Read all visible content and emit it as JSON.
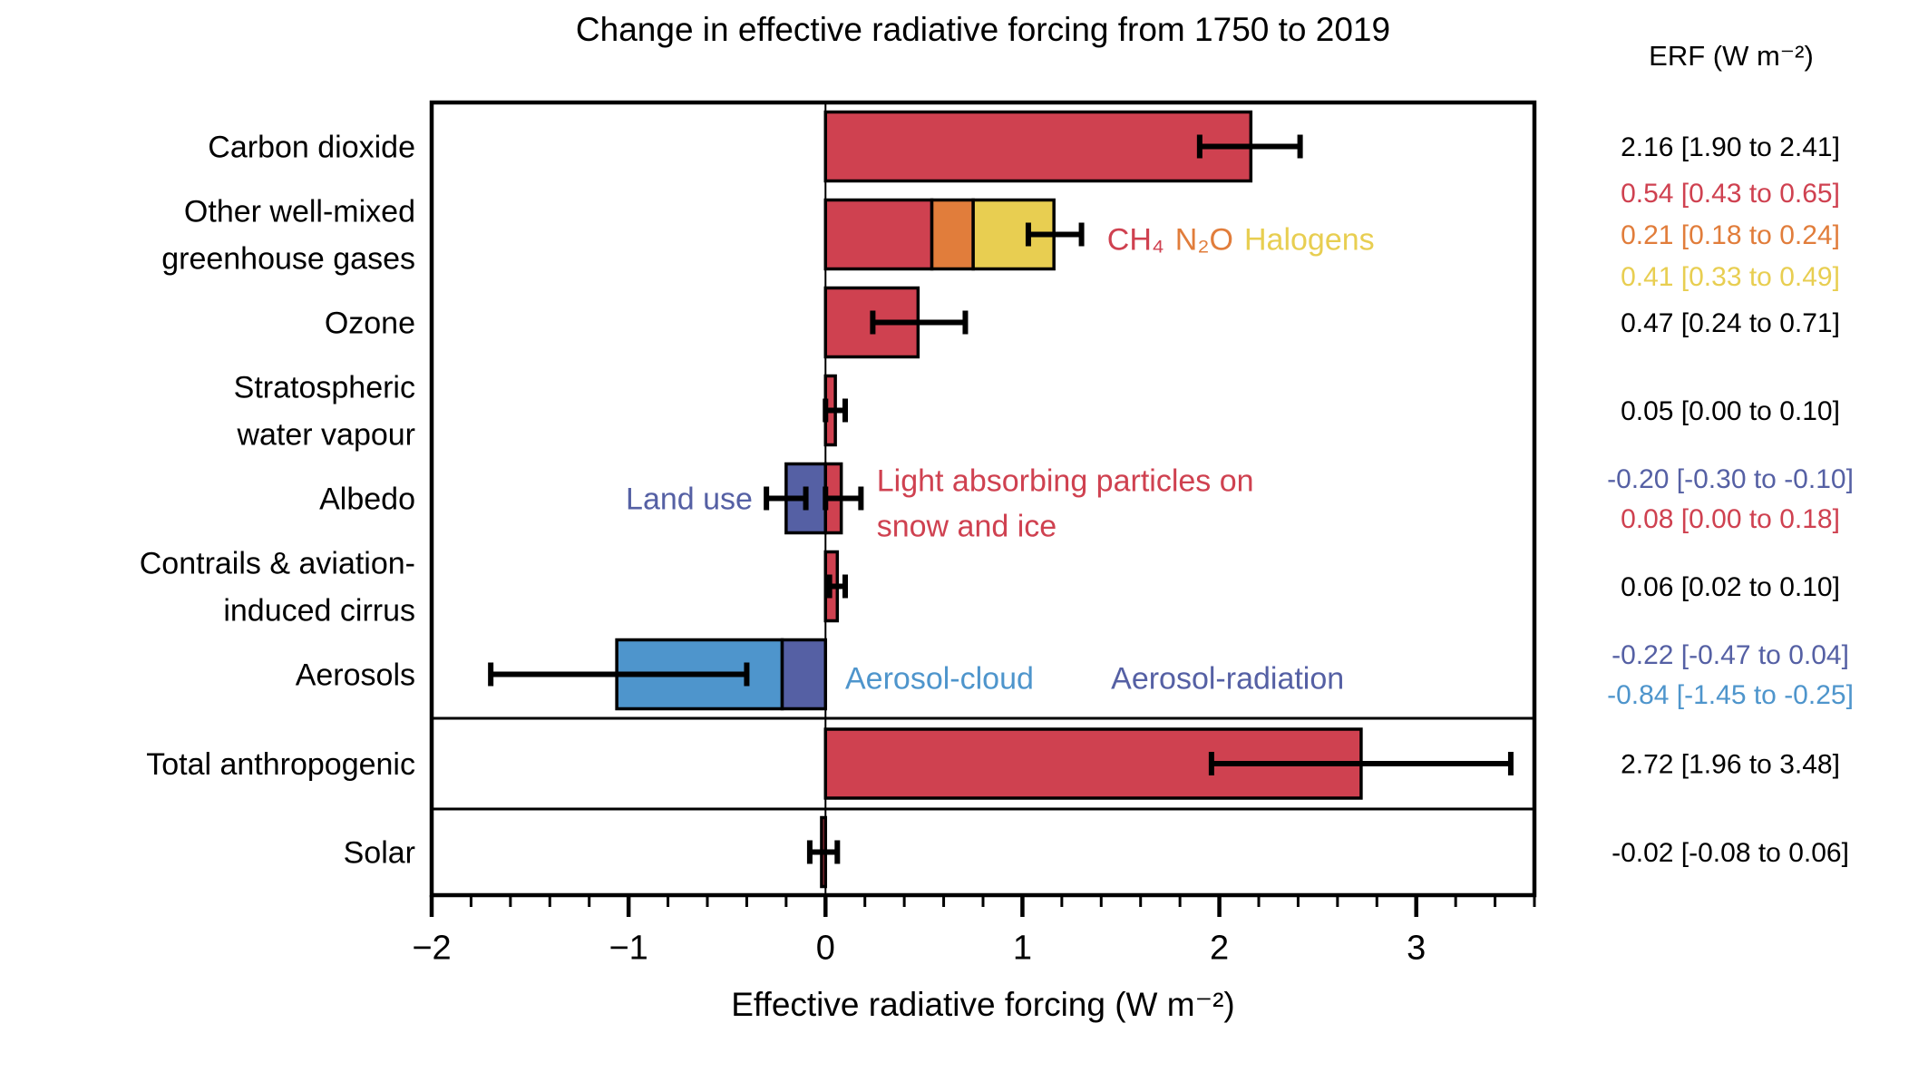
{
  "title": "Change in effective radiative forcing from 1750 to 2019",
  "erf_column": {
    "header": "ERF (W m⁻²)"
  },
  "colors": {
    "black": "#000000",
    "red": "#cf4150",
    "orange": "#e17d3b",
    "yellow": "#e8ce51",
    "dark_blue": "#5560a4",
    "light_blue": "#4e95cc"
  },
  "chart_data": {
    "type": "bar",
    "orientation": "horizontal",
    "title": "Change in effective radiative forcing from 1750 to 2019",
    "xlabel": "Effective radiative forcing (W m⁻²)",
    "ylabel": "",
    "xlim": [
      -2,
      3.6
    ],
    "xticks": [
      -2,
      -1,
      0,
      1,
      2,
      3
    ],
    "minor_tick_step": 0.2,
    "grid": false,
    "legend_position": "none",
    "rows": [
      {
        "section": "main",
        "label_lines": [
          "Carbon dioxide"
        ],
        "segments": [
          {
            "name": "Carbon dioxide",
            "start": 0,
            "end": 2.16,
            "color": "red"
          }
        ],
        "error_bars": [
          {
            "low": 1.9,
            "high": 2.41
          }
        ],
        "erf_values": [
          {
            "text": "2.16 [1.90 to 2.41]",
            "color": "black"
          }
        ]
      },
      {
        "section": "main",
        "label_lines": [
          "Other well-mixed",
          "greenhouse gases"
        ],
        "segments": [
          {
            "name": "CH₄",
            "start": 0,
            "end": 0.54,
            "color": "red"
          },
          {
            "name": "N₂O",
            "start": 0.54,
            "end": 0.75,
            "color": "orange"
          },
          {
            "name": "Halogens",
            "start": 0.75,
            "end": 1.16,
            "color": "yellow"
          }
        ],
        "error_bars": [
          {
            "low": 1.03,
            "high": 1.3
          }
        ],
        "erf_values": [
          {
            "text": "0.54 [0.43 to 0.65]",
            "color": "red"
          },
          {
            "text": "0.21 [0.18 to 0.24]",
            "color": "orange"
          },
          {
            "text": "0.41 [0.33 to 0.49]",
            "color": "yellow"
          }
        ],
        "annotations": [
          {
            "x": 1.43,
            "anchor": "start",
            "dy": 5,
            "parts": [
              {
                "text": "CH₄",
                "color": "red"
              },
              {
                "text": "N₂O",
                "color": "orange"
              },
              {
                "text": "Halogens",
                "color": "yellow"
              }
            ]
          }
        ]
      },
      {
        "section": "main",
        "label_lines": [
          "Ozone"
        ],
        "segments": [
          {
            "name": "Ozone",
            "start": 0,
            "end": 0.47,
            "color": "red"
          }
        ],
        "error_bars": [
          {
            "low": 0.24,
            "high": 0.71
          }
        ],
        "erf_values": [
          {
            "text": "0.47 [0.24 to 0.71]",
            "color": "black"
          }
        ]
      },
      {
        "section": "main",
        "label_lines": [
          "Stratospheric",
          "water vapour"
        ],
        "segments": [
          {
            "name": "Stratospheric water vapour",
            "start": 0,
            "end": 0.05,
            "color": "red"
          }
        ],
        "error_bars": [
          {
            "low": 0.0,
            "high": 0.1
          }
        ],
        "erf_values": [
          {
            "text": "0.05 [0.00 to 0.10]",
            "color": "black"
          }
        ]
      },
      {
        "section": "main",
        "label_lines": [
          "Albedo"
        ],
        "segments": [
          {
            "name": "Land use",
            "start": -0.2,
            "end": 0,
            "color": "dark_blue"
          },
          {
            "name": "Light absorbing particles on snow and ice",
            "start": 0,
            "end": 0.08,
            "color": "red"
          }
        ],
        "error_bars": [
          {
            "low": -0.3,
            "high": -0.1
          },
          {
            "low": 0.0,
            "high": 0.18
          }
        ],
        "erf_values": [
          {
            "text": "-0.20 [-0.30 to -0.10]",
            "color": "dark_blue"
          },
          {
            "text": "0.08 [0.00 to 0.18]",
            "color": "red"
          }
        ],
        "annotations": [
          {
            "x": -0.37,
            "anchor": "end",
            "dy": 0,
            "parts": [
              {
                "text": "Land use",
                "color": "dark_blue"
              }
            ]
          },
          {
            "x": 0.26,
            "anchor": "start",
            "dy": -20,
            "parts": [
              {
                "text": "Light absorbing particles on",
                "color": "red"
              }
            ]
          },
          {
            "x": 0.26,
            "anchor": "start",
            "dy": 30,
            "parts": [
              {
                "text": "snow and ice",
                "color": "red"
              }
            ]
          }
        ]
      },
      {
        "section": "main",
        "label_lines": [
          "Contrails & aviation-",
          "induced cirrus"
        ],
        "segments": [
          {
            "name": "Contrails & aviation-induced cirrus",
            "start": 0,
            "end": 0.06,
            "color": "red"
          }
        ],
        "error_bars": [
          {
            "low": 0.02,
            "high": 0.1
          }
        ],
        "erf_values": [
          {
            "text": "0.06 [0.02 to 0.10]",
            "color": "black"
          }
        ]
      },
      {
        "section": "main",
        "label_lines": [
          "Aerosols"
        ],
        "segments": [
          {
            "name": "Aerosol-cloud",
            "start": -1.06,
            "end": -0.22,
            "color": "light_blue"
          },
          {
            "name": "Aerosol-radiation",
            "start": -0.22,
            "end": 0,
            "color": "dark_blue"
          }
        ],
        "error_bars": [
          {
            "low": -1.7,
            "high": -0.4
          }
        ],
        "erf_values": [
          {
            "text": "-0.22 [-0.47 to 0.04]",
            "color": "dark_blue"
          },
          {
            "text": "-0.84 [-1.45 to -0.25]",
            "color": "light_blue"
          }
        ],
        "annotations": [
          {
            "x": 0.1,
            "anchor": "start",
            "dy": 4,
            "parts": [
              {
                "text": "Aerosol-cloud",
                "color": "light_blue"
              }
            ]
          },
          {
            "x": 1.45,
            "anchor": "start",
            "dy": 4,
            "parts": [
              {
                "text": "Aerosol-radiation",
                "color": "dark_blue"
              }
            ]
          }
        ]
      },
      {
        "section": "total",
        "label_lines": [
          "Total anthropogenic"
        ],
        "segments": [
          {
            "name": "Total anthropogenic",
            "start": 0,
            "end": 2.72,
            "color": "red"
          }
        ],
        "error_bars": [
          {
            "low": 1.96,
            "high": 3.48
          }
        ],
        "erf_values": [
          {
            "text": "2.72 [1.96 to 3.48]",
            "color": "black"
          }
        ]
      },
      {
        "section": "solar",
        "label_lines": [
          "Solar"
        ],
        "segments": [
          {
            "name": "Solar",
            "start": -0.02,
            "end": 0,
            "color": "red"
          }
        ],
        "error_bars": [
          {
            "low": -0.08,
            "high": 0.06
          }
        ],
        "erf_values": [
          {
            "text": "-0.02 [-0.08 to 0.06]",
            "color": "black"
          }
        ]
      }
    ]
  }
}
